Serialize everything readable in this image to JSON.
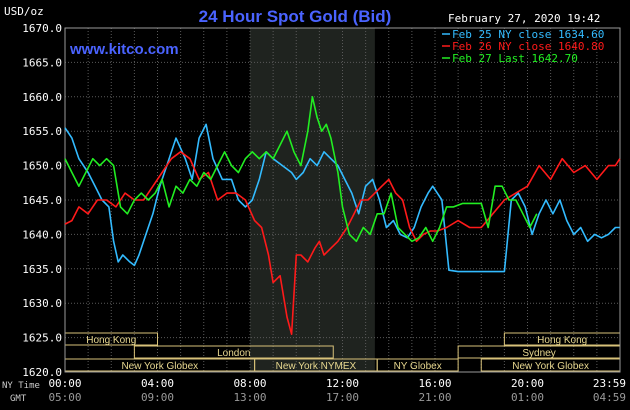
{
  "chart_data": {
    "type": "line",
    "title": "24 Hour Spot Gold (Bid)",
    "watermark": "www.kitco.com",
    "timestamp": "February 27, 2020 19:42",
    "yunit": "USD/oz",
    "ylim": [
      1620,
      1670
    ],
    "yticks": [
      "1620.0",
      "1625.0",
      "1630.0",
      "1635.0",
      "1640.0",
      "1645.0",
      "1650.0",
      "1655.0",
      "1660.0",
      "1665.0",
      "1670.0"
    ],
    "xlim": [
      0,
      24
    ],
    "x_label_ny": "NY Time",
    "x_label_gmt": "GMT",
    "xticks_ny": [
      "00:00",
      "04:00",
      "08:00",
      "12:00",
      "16:00",
      "20:00",
      "23:59"
    ],
    "xticks_gmt": [
      "05:00",
      "09:00",
      "13:00",
      "17:00",
      "21:00",
      "01:00",
      "04:59"
    ],
    "grid": true,
    "highlight_band": [
      8.0,
      13.4
    ],
    "legend": [
      {
        "label": "Feb 25 NY close 1634.60",
        "color": "#33bbff"
      },
      {
        "label": "Feb 26 NY close 1640.80",
        "color": "#ff1a1a"
      },
      {
        "label": "Feb 27 Last 1642.70",
        "color": "#22ee22"
      }
    ],
    "sessions": [
      {
        "label": "Hong Kong",
        "start": 0.0,
        "end": 4.0,
        "row": 0
      },
      {
        "label": "London",
        "start": 3.0,
        "end": 11.6,
        "row": 1
      },
      {
        "label": "New York Globex",
        "start": 0.0,
        "end": 8.2,
        "row": 2
      },
      {
        "label": "New York NYMEX",
        "start": 8.2,
        "end": 13.5,
        "row": 2
      },
      {
        "label": "NY Globex",
        "start": 13.5,
        "end": 17.0,
        "row": 2
      },
      {
        "label": "Hong Kong",
        "start": 19.0,
        "end": 24.0,
        "row": 0
      },
      {
        "label": "Sydney",
        "start": 17.0,
        "end": 24.0,
        "row": 1
      },
      {
        "label": "New York Globex",
        "start": 18.0,
        "end": 24.0,
        "row": 2
      }
    ],
    "series": [
      {
        "name": "Feb 25",
        "color": "#33bbff",
        "x": [
          0,
          0.3,
          0.6,
          1.0,
          1.3,
          1.6,
          1.9,
          2.1,
          2.3,
          2.5,
          2.8,
          3.0,
          3.2,
          3.5,
          3.8,
          4.1,
          4.4,
          4.8,
          5.2,
          5.5,
          5.8,
          6.1,
          6.4,
          6.8,
          7.2,
          7.5,
          7.8,
          8.1,
          8.4,
          8.7,
          9.0,
          9.4,
          9.8,
          10.0,
          10.3,
          10.6,
          10.9,
          11.2,
          11.5,
          11.8,
          12.1,
          12.4,
          12.7,
          13.0,
          13.3,
          13.6,
          13.9,
          14.2,
          14.5,
          14.8,
          15.1,
          15.4,
          15.7,
          15.9,
          16.1,
          16.3,
          16.6,
          17.0,
          17.5,
          18.0,
          18.5,
          19.0,
          19.3,
          19.6,
          19.9,
          20.2,
          20.5,
          20.8,
          21.1,
          21.4,
          21.7,
          22.0,
          22.3,
          22.6,
          22.9,
          23.2,
          23.5,
          23.8,
          23.99
        ],
        "y": [
          1655.5,
          1654,
          1651,
          1649,
          1647,
          1645,
          1644,
          1639,
          1636,
          1637,
          1636,
          1635.5,
          1637,
          1640,
          1643,
          1647,
          1650,
          1654,
          1651,
          1648,
          1654,
          1656,
          1651,
          1648,
          1648,
          1645,
          1644,
          1645,
          1648,
          1652,
          1651,
          1650,
          1649,
          1648,
          1649,
          1651,
          1650,
          1652,
          1651,
          1650,
          1648,
          1646,
          1643,
          1647,
          1648,
          1645,
          1641,
          1642,
          1640,
          1639.5,
          1641,
          1644,
          1646,
          1647,
          1646,
          1645,
          1634.8,
          1634.6,
          1634.6,
          1634.6,
          1634.6,
          1634.6,
          1645,
          1646,
          1644,
          1640,
          1643,
          1645,
          1643,
          1645,
          1642,
          1640,
          1641,
          1639,
          1640,
          1639.5,
          1640,
          1641,
          1641
        ]
      },
      {
        "name": "Feb 26",
        "color": "#ff1a1a",
        "x": [
          0,
          0.3,
          0.6,
          1.0,
          1.4,
          1.8,
          2.2,
          2.6,
          3.0,
          3.4,
          3.8,
          4.2,
          4.6,
          5.0,
          5.4,
          5.8,
          6.2,
          6.6,
          7.0,
          7.4,
          7.8,
          8.2,
          8.5,
          8.8,
          9.0,
          9.3,
          9.6,
          9.8,
          10.0,
          10.2,
          10.5,
          10.8,
          11.0,
          11.2,
          11.5,
          11.8,
          12.0,
          12.2,
          12.5,
          12.8,
          13.1,
          13.4,
          13.7,
          14.0,
          14.3,
          14.6,
          14.9,
          15.2,
          15.5,
          15.8,
          16.1,
          16.5,
          17.0,
          17.5,
          18.0,
          18.5,
          19.0,
          19.5,
          20.0,
          20.5,
          21.0,
          21.5,
          22.0,
          22.5,
          23.0,
          23.5,
          23.8,
          23.99
        ],
        "y": [
          1641.5,
          1642,
          1644,
          1643,
          1645,
          1645,
          1644,
          1646,
          1645,
          1645,
          1647,
          1649,
          1651,
          1652,
          1651,
          1648,
          1649,
          1645,
          1646,
          1646,
          1645,
          1642,
          1641,
          1637,
          1633,
          1634,
          1628,
          1625.5,
          1637,
          1637,
          1636,
          1638,
          1639,
          1637,
          1638,
          1639,
          1640,
          1641,
          1643,
          1645,
          1645,
          1646,
          1647,
          1648,
          1646,
          1645,
          1641,
          1639,
          1640,
          1640.5,
          1640.5,
          1641,
          1642,
          1641,
          1641,
          1643,
          1645,
          1646,
          1647,
          1650,
          1648,
          1651,
          1649,
          1650,
          1648,
          1650,
          1650,
          1651
        ]
      },
      {
        "name": "Feb 27",
        "color": "#22ee22",
        "x": [
          0,
          0.3,
          0.6,
          0.9,
          1.2,
          1.5,
          1.8,
          2.1,
          2.4,
          2.7,
          3.0,
          3.3,
          3.6,
          3.9,
          4.2,
          4.5,
          4.8,
          5.1,
          5.4,
          5.7,
          6.0,
          6.3,
          6.6,
          6.9,
          7.2,
          7.5,
          7.8,
          8.1,
          8.4,
          8.7,
          9.0,
          9.3,
          9.6,
          9.9,
          10.2,
          10.5,
          10.7,
          10.9,
          11.1,
          11.3,
          11.5,
          11.8,
          12.0,
          12.3,
          12.6,
          12.9,
          13.2,
          13.5,
          13.8,
          14.1,
          14.4,
          14.7,
          15.0,
          15.3,
          15.6,
          15.9,
          16.2,
          16.5,
          16.8,
          17.2,
          17.6,
          18.0,
          18.3,
          18.6,
          18.9,
          19.2,
          19.5,
          19.8,
          20.1,
          20.4
        ],
        "y": [
          1651,
          1649,
          1647,
          1649,
          1651,
          1650,
          1651,
          1650,
          1644,
          1643,
          1645,
          1646,
          1645,
          1646,
          1648,
          1644,
          1647,
          1646,
          1648,
          1647,
          1649,
          1648,
          1650,
          1652,
          1650,
          1649,
          1651,
          1652,
          1651,
          1652,
          1651,
          1653,
          1655,
          1652,
          1650,
          1655,
          1660,
          1657,
          1655,
          1656,
          1654,
          1649,
          1644,
          1640,
          1639,
          1641,
          1640,
          1643,
          1643,
          1646,
          1641,
          1640,
          1639,
          1639.5,
          1641,
          1639,
          1641,
          1644,
          1644,
          1644.5,
          1644.5,
          1644.5,
          1641,
          1647,
          1647,
          1645,
          1645,
          1643,
          1641,
          1643
        ]
      }
    ]
  }
}
